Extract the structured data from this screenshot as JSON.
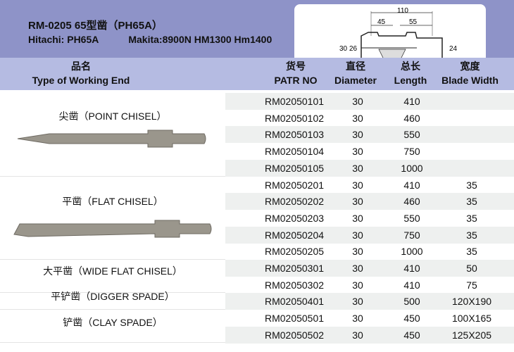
{
  "header": {
    "title": "RM-0205 65型凿（PH65A）",
    "compat_hitachi": "Hitachi: PH65A",
    "compat_makita": "Makita:8900N HM1300 Hm1400"
  },
  "diagram": {
    "total": "110",
    "seg1": "45",
    "seg2": "55",
    "d_outer": "30",
    "d_inner": "26",
    "d_shank": "24"
  },
  "columns": {
    "type_cn": "品名",
    "type_en": "Type of Working End",
    "part_cn": "货号",
    "part_en": "PATR NO",
    "dia_cn": "直径",
    "dia_en": "Diameter",
    "len_cn": "总长",
    "len_en": "Length",
    "width_cn": "宽度",
    "width_en": "Blade Width"
  },
  "groups": [
    {
      "label": "尖凿（POINT CHISEL）"
    },
    {
      "label": "平凿（FLAT CHISEL）"
    },
    {
      "label": "大平凿（WIDE FLAT CHISEL）"
    },
    {
      "label": "平铲凿（DIGGER SPADE）"
    },
    {
      "label": "铲凿（CLAY  SPADE）"
    }
  ],
  "rows": [
    {
      "part": "RM02050101",
      "dia": "30",
      "len": "410",
      "width": ""
    },
    {
      "part": "RM02050102",
      "dia": "30",
      "len": "460",
      "width": ""
    },
    {
      "part": "RM02050103",
      "dia": "30",
      "len": "550",
      "width": ""
    },
    {
      "part": "RM02050104",
      "dia": "30",
      "len": "750",
      "width": ""
    },
    {
      "part": "RM02050105",
      "dia": "30",
      "len": "1000",
      "width": ""
    },
    {
      "part": "RM02050201",
      "dia": "30",
      "len": "410",
      "width": "35"
    },
    {
      "part": "RM02050202",
      "dia": "30",
      "len": "460",
      "width": "35"
    },
    {
      "part": "RM02050203",
      "dia": "30",
      "len": "550",
      "width": "35"
    },
    {
      "part": "RM02050204",
      "dia": "30",
      "len": "750",
      "width": "35"
    },
    {
      "part": "RM02050205",
      "dia": "30",
      "len": "1000",
      "width": "35"
    },
    {
      "part": "RM02050301",
      "dia": "30",
      "len": "410",
      "width": "50"
    },
    {
      "part": "RM02050302",
      "dia": "30",
      "len": "410",
      "width": "75"
    },
    {
      "part": "RM02050401",
      "dia": "30",
      "len": "500",
      "width": "120X190"
    },
    {
      "part": "RM02050501",
      "dia": "30",
      "len": "450",
      "width": "100X165"
    },
    {
      "part": "RM02050502",
      "dia": "30",
      "len": "450",
      "width": "125X205"
    }
  ]
}
